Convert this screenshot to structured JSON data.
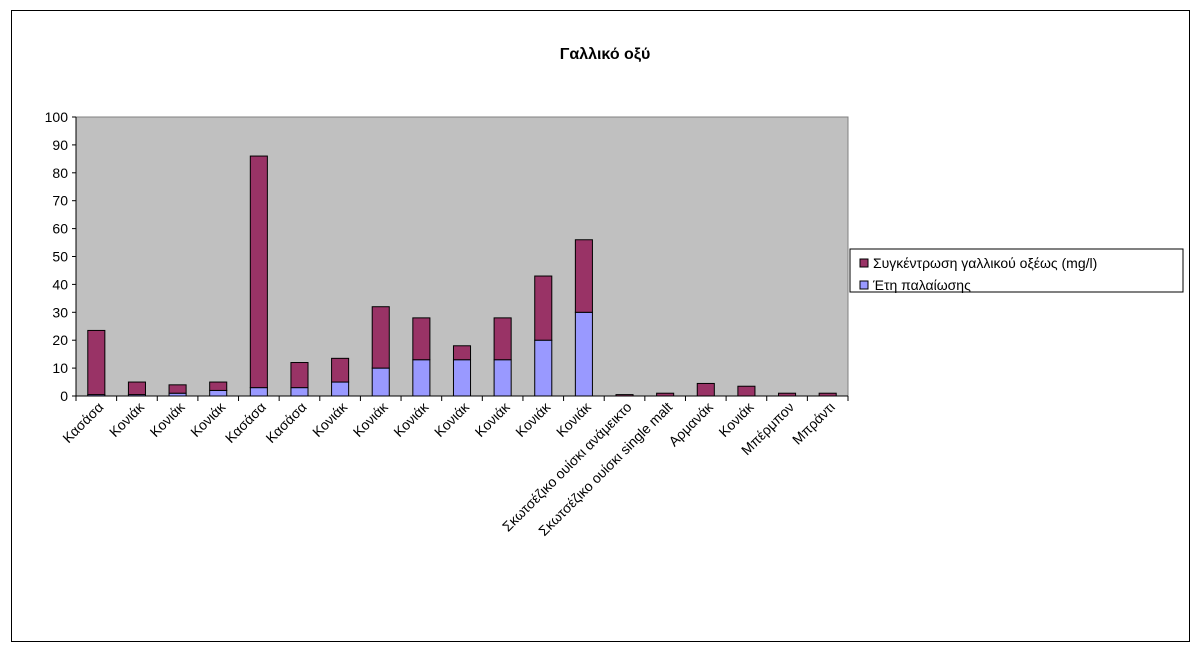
{
  "chart_data": {
    "type": "bar",
    "stacked": true,
    "title": "Γαλλικό οξύ",
    "xlabel": "",
    "ylabel": "",
    "ylim": [
      0,
      100
    ],
    "yticks": [
      0,
      10,
      20,
      30,
      40,
      50,
      60,
      70,
      80,
      90,
      100
    ],
    "grid": false,
    "plot_background": "#c0c0c0",
    "legend_position": "right",
    "categories": [
      "Κασάσα",
      "Κονιάκ",
      "Κονιάκ",
      "Κονιάκ",
      "Κασάσα",
      "Κασάσα",
      "Κονιάκ",
      "Κονιάκ",
      "Κονιάκ",
      "Κονιάκ",
      "Κονιάκ",
      "Κονιάκ",
      "Κονιάκ",
      "Σκωτσέζικο ουίσκι ανάμεικτο",
      "Σκωτσέζικο ουίσκι single malt",
      "Αρμανάκ",
      "Κονιάκ",
      "Μπέρμπον",
      "Μπράντι"
    ],
    "series": [
      {
        "name": "Έτη παλαίωσης",
        "color": "#9999ff",
        "values": [
          0.5,
          0.5,
          1,
          2,
          3,
          3,
          5,
          10,
          13,
          13,
          13,
          20,
          30,
          0,
          0,
          0,
          0,
          0,
          0
        ]
      },
      {
        "name": "Συγκέντρωση γαλλικού οξέως (mg/l)",
        "color": "#993366",
        "values": [
          23,
          4.5,
          3,
          3,
          83,
          9,
          8.5,
          22,
          15,
          5,
          15,
          23,
          26,
          0.5,
          1,
          4.5,
          3.5,
          1,
          1
        ]
      }
    ],
    "legend_order": [
      "Συγκέντρωση γαλλικού οξέως (mg/l)",
      "Έτη παλαίωσης"
    ]
  }
}
